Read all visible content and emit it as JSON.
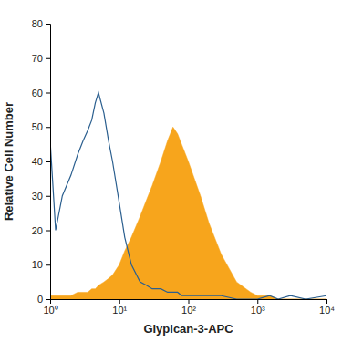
{
  "chart_data": {
    "type": "line",
    "log": "x",
    "x_label": "Glypican-3-APC",
    "y_label": "Relative Cell Number",
    "x": [
      1,
      1.2,
      1.5,
      2,
      2.5,
      3,
      3.5,
      4,
      4.5,
      5,
      6,
      7,
      8,
      10,
      12,
      15,
      20,
      25,
      30,
      40,
      50,
      60,
      70,
      80,
      100,
      150,
      200,
      300,
      500,
      800,
      1000,
      1500,
      2000,
      3000,
      5000,
      10000
    ],
    "series": [
      {
        "type": "area",
        "color": "#f7a51c",
        "values": [
          1,
          1,
          1,
          1,
          2,
          2,
          2,
          3,
          3,
          4,
          5,
          6,
          7,
          10,
          14,
          18,
          24,
          29,
          33,
          40,
          46,
          50,
          48,
          45,
          40,
          30,
          22,
          13,
          5,
          2,
          1,
          1,
          0,
          0,
          0,
          0
        ]
      },
      {
        "type": "line",
        "color": "#2b5f8f",
        "values": [
          46,
          20,
          30,
          36,
          42,
          46,
          49,
          52,
          57,
          60,
          54,
          46,
          40,
          28,
          18,
          10,
          5,
          4,
          3,
          3,
          2,
          2,
          2,
          1,
          1,
          1,
          1,
          1,
          0,
          0,
          0,
          1,
          0,
          1,
          0,
          1
        ]
      }
    ],
    "xlim": [
      1,
      10000
    ],
    "xticks": [
      {
        "value": 1,
        "label": "10⁰"
      },
      {
        "value": 10,
        "label": "10¹"
      },
      {
        "value": 100,
        "label": "10²"
      },
      {
        "value": 1000,
        "label": "10³"
      },
      {
        "value": 10000,
        "label": "10⁴"
      }
    ],
    "ylim": [
      0,
      80
    ],
    "yticks": [
      0,
      10,
      20,
      30,
      40,
      50,
      60,
      70,
      80
    ]
  }
}
